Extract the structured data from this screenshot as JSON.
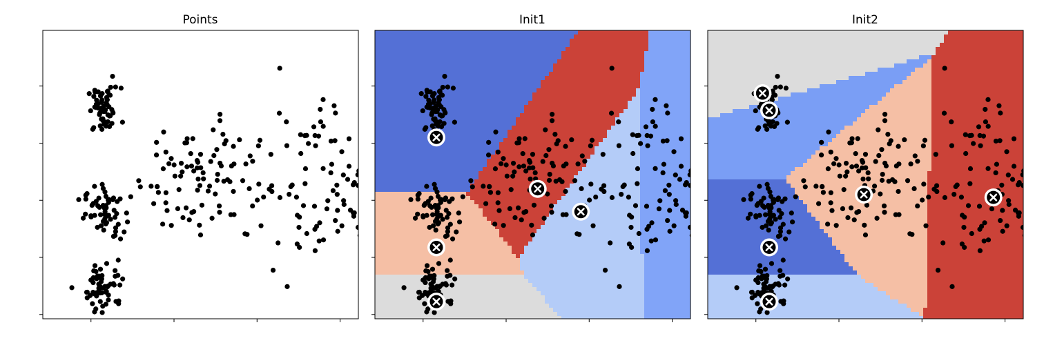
{
  "chart_data": [
    {
      "type": "scatter",
      "title": "Points",
      "xlabel": "",
      "ylabel": "",
      "xlim": [
        -2.9,
        16.1
      ],
      "ylim": [
        -18.3,
        1.9
      ],
      "xticks": [
        0,
        5,
        10,
        15
      ],
      "yticks": [
        -18,
        -14,
        -10,
        -6,
        -2
      ],
      "tick_labels_shown": false,
      "grid": false,
      "points_color": "#000000",
      "cluster_summary": [
        {
          "center": [
            0.8,
            -3.7
          ],
          "spread": [
            0.5,
            0.8
          ],
          "count": 60
        },
        {
          "center": [
            0.8,
            -10.8
          ],
          "spread": [
            0.6,
            0.9
          ],
          "count": 60
        },
        {
          "center": [
            0.8,
            -16.0
          ],
          "spread": [
            0.6,
            0.9
          ],
          "count": 60
        },
        {
          "center": [
            6.5,
            -8.3
          ],
          "spread": [
            1.8,
            2.1
          ],
          "count": 90
        },
        {
          "center": [
            14.3,
            -8.9
          ],
          "spread": [
            2.4,
            3.0
          ],
          "count": 110
        }
      ]
    },
    {
      "type": "scatter",
      "title": "Init1",
      "xlabel": "",
      "ylabel": "",
      "xlim": [
        -2.9,
        16.1
      ],
      "ylim": [
        -18.3,
        1.9
      ],
      "xticks": [
        0,
        5,
        10,
        15
      ],
      "yticks": [
        -18,
        -14,
        -10,
        -6,
        -2
      ],
      "tick_labels_shown": false,
      "grid": false,
      "centroids": [
        [
          0.8,
          -5.6
        ],
        [
          0.8,
          -13.3
        ],
        [
          0.8,
          -17.1
        ],
        [
          6.9,
          -9.2
        ],
        [
          9.5,
          -10.8
        ],
        [
          16.8,
          -10.7
        ]
      ],
      "region_colors": [
        "#5470d6",
        "#f5bfa5",
        "#dcdcdc",
        "#cb4238",
        "#b4ccf8",
        "#81a4f8"
      ]
    },
    {
      "type": "scatter",
      "title": "Init2",
      "xlabel": "",
      "ylabel": "",
      "xlim": [
        -2.9,
        16.1
      ],
      "ylim": [
        -18.3,
        1.9
      ],
      "xticks": [
        0,
        5,
        10,
        15
      ],
      "yticks": [
        -18,
        -14,
        -10,
        -6,
        -2
      ],
      "tick_labels_shown": false,
      "grid": false,
      "centroids": [
        [
          0.4,
          -2.5
        ],
        [
          0.8,
          -3.7
        ],
        [
          0.8,
          -13.3
        ],
        [
          0.8,
          -17.1
        ],
        [
          6.5,
          -9.6
        ],
        [
          14.3,
          -9.8
        ]
      ],
      "region_colors": [
        "#dcdcdc",
        "#7a9ef5",
        "#5470d6",
        "#b4ccf8",
        "#f5bfa5",
        "#cb4238"
      ]
    }
  ]
}
